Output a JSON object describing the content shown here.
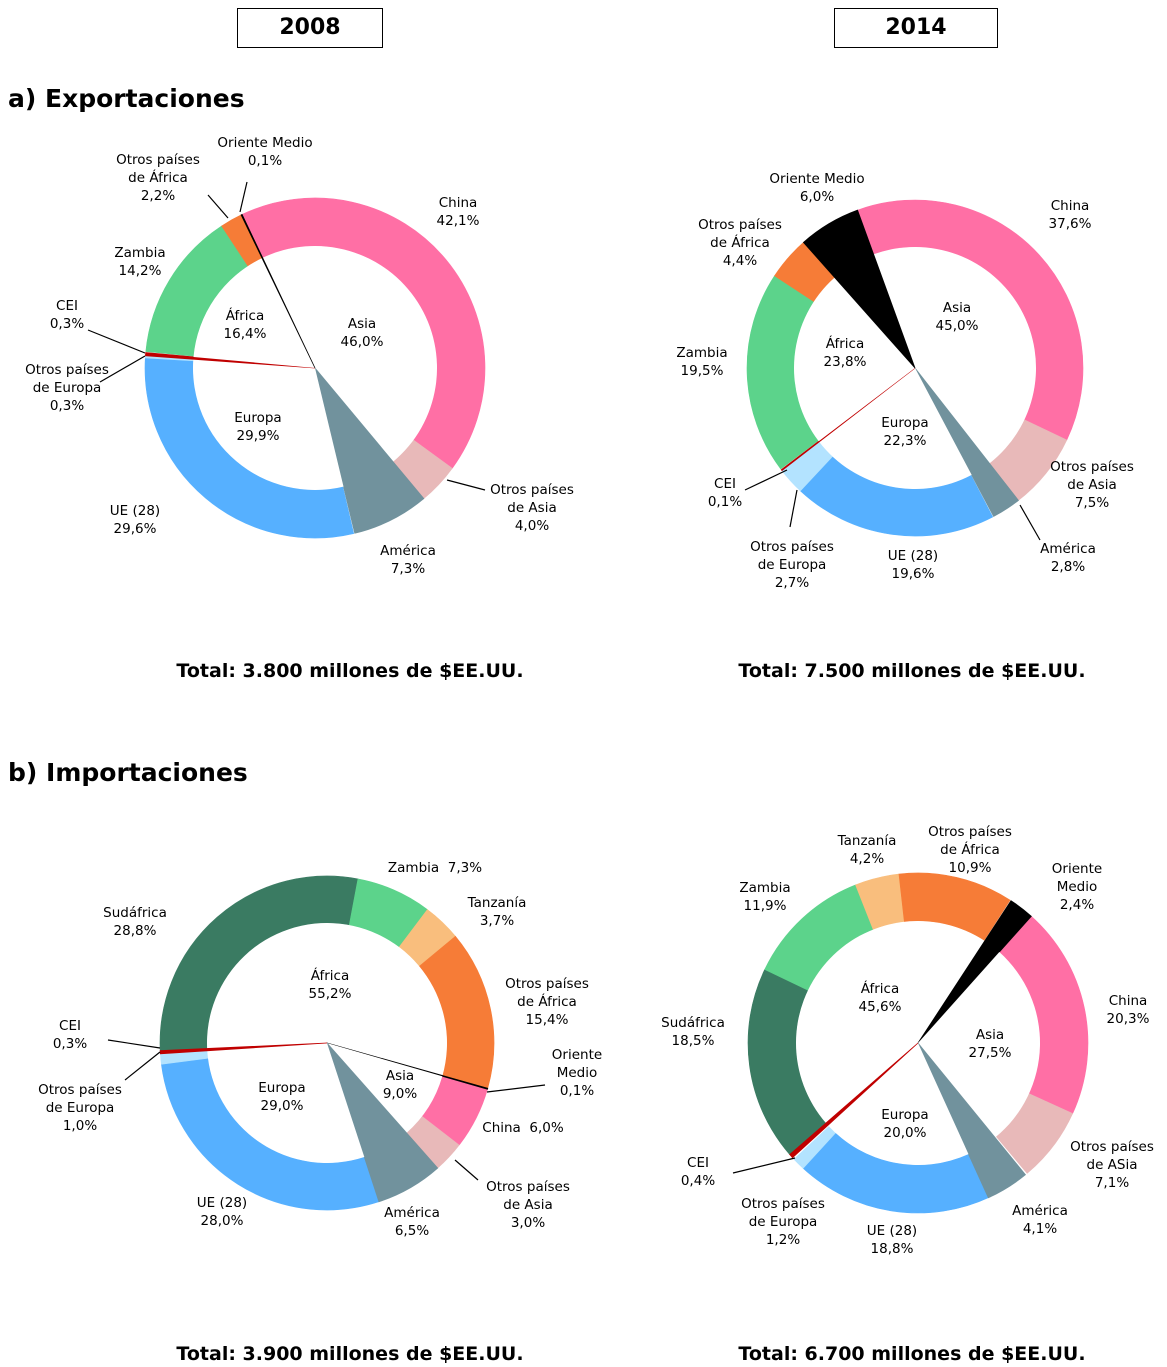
{
  "headers": [
    "2008",
    "2014"
  ],
  "sections": [
    "a) Exportaciones",
    "b) Importaciones"
  ],
  "chart_data": [
    {
      "type": "sunburst",
      "total": "Total: 3.800 millones de $EE.UU.",
      "categories": [
        "China",
        "Otros países de Asia",
        "América",
        "UE (28)",
        "Otros países de Europa",
        "CEI",
        "Zambia",
        "Otros países de África",
        "Oriente Medio"
      ],
      "values": [
        42.1,
        4.0,
        7.3,
        29.6,
        0.3,
        0.3,
        14.2,
        2.2,
        0.1
      ],
      "value_labels": [
        "42,1%",
        "4,0%",
        "7,3%",
        "29,6%",
        "0,3%",
        "0,3%",
        "14,2%",
        "2,2%",
        "0,1%"
      ],
      "colors": [
        "#ff6fa5",
        "#e8b9b9",
        "#71929d",
        "#56b0ff",
        "#b3e3ff",
        "#c00000",
        "#5cd38b",
        "#f67c37",
        "#000000"
      ],
      "full": [
        false,
        false,
        true,
        false,
        false,
        true,
        false,
        false,
        true
      ],
      "inner": {
        "categories": [
          "Asia",
          null,
          "Europa",
          null,
          "África",
          null
        ],
        "values": [
          46.0,
          null,
          29.9,
          null,
          16.4,
          null
        ],
        "value_labels": [
          "46,0%",
          null,
          "29,9%",
          null,
          "16,4%",
          null
        ]
      }
    },
    {
      "type": "sunburst",
      "total": "Total: 7.500 millones de $EE.UU.",
      "categories": [
        "China",
        "Otros países de Asia",
        "América",
        "UE (28)",
        "Otros países de Europa",
        "CEI",
        "Zambia",
        "Otros países de África",
        "Oriente Medio"
      ],
      "values": [
        37.6,
        7.5,
        2.8,
        19.6,
        2.7,
        0.1,
        19.5,
        4.4,
        6.0
      ],
      "value_labels": [
        "37,6%",
        "7,5%",
        "2,8%",
        "19,6%",
        "2,7%",
        "0,1%",
        "19,5%",
        "4,4%",
        "6,0%"
      ],
      "colors": [
        "#ff6fa5",
        "#e8b9b9",
        "#71929d",
        "#56b0ff",
        "#b3e3ff",
        "#c00000",
        "#5cd38b",
        "#f67c37",
        "#000000"
      ],
      "full": [
        false,
        false,
        true,
        false,
        false,
        true,
        false,
        false,
        true
      ],
      "inner": {
        "categories": [
          "Asia",
          null,
          "Europa",
          null,
          "África",
          null
        ],
        "values": [
          45.0,
          null,
          22.3,
          null,
          23.8,
          null
        ],
        "value_labels": [
          "45,0%",
          null,
          "22,3%",
          null,
          "23,8%",
          null
        ]
      }
    },
    {
      "type": "sunburst",
      "total": "Total: 3.900 millones de $EE.UU.",
      "categories": [
        "Sudáfrica",
        "Zambia",
        "Tanzanía",
        "Otros países de África",
        "Oriente Medio",
        "China",
        "Otros países de Asia",
        "América",
        "UE (28)",
        "Otros países de Europa",
        "CEI"
      ],
      "values": [
        28.8,
        7.3,
        3.7,
        15.4,
        0.1,
        6.0,
        3.0,
        6.5,
        28.0,
        1.0,
        0.3
      ],
      "value_labels": [
        "28,8%",
        "7,3%",
        "3,7%",
        "15,4%",
        "0,1%",
        "6,0%",
        "3,0%",
        "6,5%",
        "28,0%",
        "1,0%",
        "0,3%"
      ],
      "colors": [
        "#3a7b62",
        "#5cd38b",
        "#f9be7d",
        "#f67c37",
        "#000000",
        "#ff6fa5",
        "#e8b9b9",
        "#71929d",
        "#56b0ff",
        "#b3e3ff",
        "#c00000"
      ],
      "full": [
        false,
        false,
        false,
        false,
        true,
        false,
        false,
        true,
        false,
        false,
        true
      ],
      "inner": {
        "categories": [
          "África",
          null,
          "Asia",
          null,
          "Europa",
          null
        ],
        "values": [
          55.2,
          null,
          9.0,
          null,
          29.0,
          null
        ],
        "value_labels": [
          "55,2%",
          null,
          "9,0%",
          null,
          "29,0%",
          null
        ]
      }
    },
    {
      "type": "sunburst",
      "total": "Total: 6.700 millones de $EE.UU.",
      "categories": [
        "Sudáfrica",
        "Zambia",
        "Tanzanía",
        "Otros países de África",
        "Oriente Medio",
        "China",
        "Otros países de ASia",
        "América",
        "UE (28)",
        "Otros países de Europa",
        "CEI"
      ],
      "values": [
        18.5,
        11.9,
        4.2,
        10.9,
        2.4,
        20.3,
        7.1,
        4.1,
        18.8,
        1.2,
        0.4
      ],
      "value_labels": [
        "18,5%",
        "11,9%",
        "4,2%",
        "10,9%",
        "2,4%",
        "20,3%",
        "7,1%",
        "4,1%",
        "18,8%",
        "1,2%",
        "0,4%"
      ],
      "colors": [
        "#3a7b62",
        "#5cd38b",
        "#f9be7d",
        "#f67c37",
        "#000000",
        "#ff6fa5",
        "#e8b9b9",
        "#71929d",
        "#56b0ff",
        "#b3e3ff",
        "#c00000"
      ],
      "full": [
        false,
        false,
        false,
        false,
        true,
        false,
        false,
        true,
        false,
        false,
        true
      ],
      "inner": {
        "categories": [
          "África",
          null,
          "Asia",
          null,
          "Europa",
          null
        ],
        "values": [
          45.6,
          null,
          27.5,
          null,
          20.0,
          null
        ],
        "value_labels": [
          "45,6%",
          null,
          "27,5%",
          null,
          "20,0%",
          null
        ]
      }
    }
  ]
}
